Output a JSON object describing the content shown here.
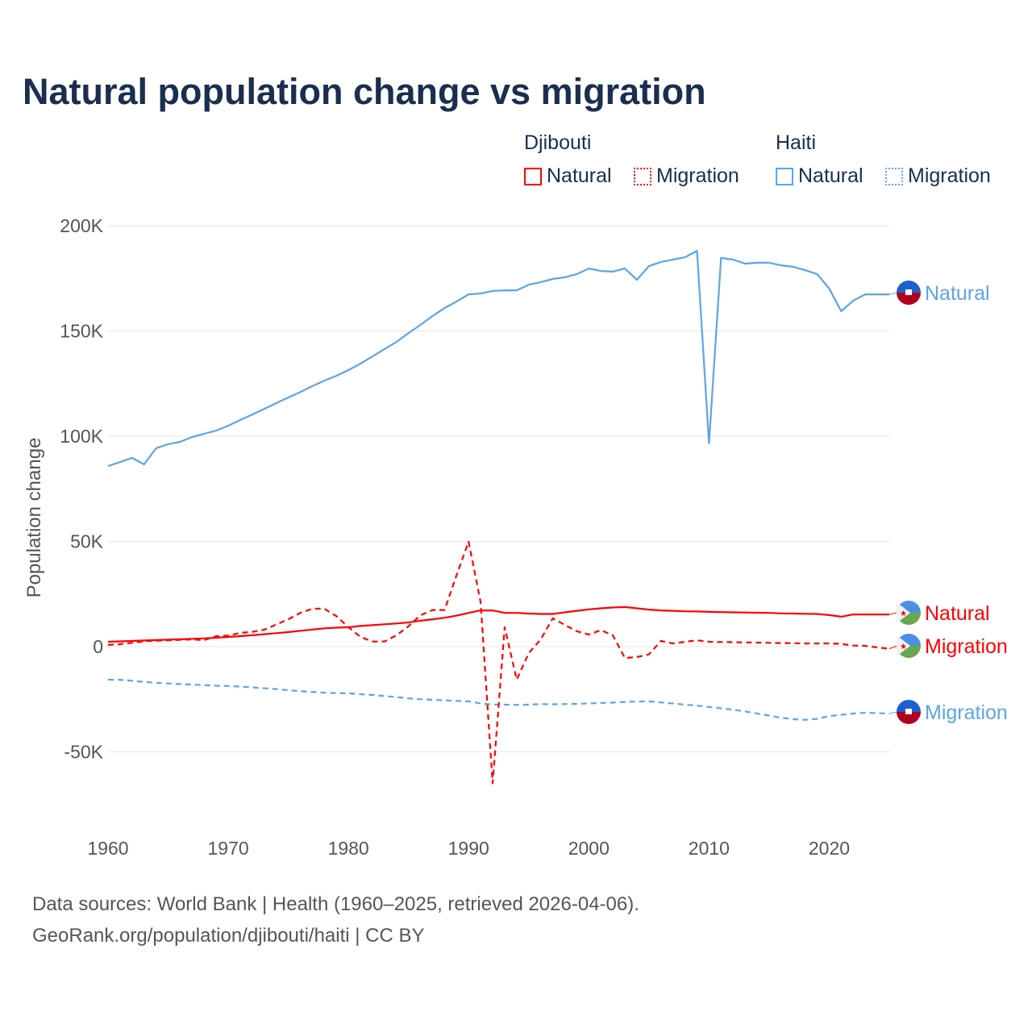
{
  "chart_data": {
    "type": "line",
    "title": "Natural population change vs migration",
    "ylabel": "Population change",
    "xlabel": "",
    "xlim": [
      1960,
      2025
    ],
    "ylim": [
      -65000,
      200000
    ],
    "x_ticks": [
      1960,
      1970,
      1980,
      1990,
      2000,
      2010,
      2020
    ],
    "y_ticks": [
      -50000,
      0,
      50000,
      100000,
      150000,
      200000
    ],
    "y_tick_labels": [
      "-50K",
      "0",
      "50K",
      "100K",
      "150K",
      "200K"
    ],
    "grid": true,
    "legend": {
      "placement": "top-right",
      "groups": [
        {
          "name": "Djibouti",
          "items": [
            "Natural",
            "Migration"
          ]
        },
        {
          "name": "Haiti",
          "items": [
            "Natural",
            "Migration"
          ]
        }
      ]
    },
    "x": [
      1960,
      1961,
      1962,
      1963,
      1964,
      1965,
      1966,
      1967,
      1968,
      1969,
      1970,
      1971,
      1972,
      1973,
      1974,
      1975,
      1976,
      1977,
      1978,
      1979,
      1980,
      1981,
      1982,
      1983,
      1984,
      1985,
      1986,
      1987,
      1988,
      1989,
      1990,
      1991,
      1992,
      1993,
      1994,
      1995,
      1996,
      1997,
      1998,
      1999,
      2000,
      2001,
      2002,
      2003,
      2004,
      2005,
      2006,
      2007,
      2008,
      2009,
      2010,
      2011,
      2012,
      2013,
      2014,
      2015,
      2016,
      2017,
      2018,
      2019,
      2020,
      2021,
      2022,
      2023,
      2024,
      2025
    ],
    "series": [
      {
        "country": "Haiti",
        "name": "Natural",
        "color": "#5da4e8",
        "dash": false,
        "end_label": "Natural",
        "values": [
          85800,
          87700,
          89700,
          86600,
          94300,
          96200,
          97300,
          99600,
          101100,
          102700,
          105000,
          107700,
          110300,
          113000,
          115700,
          118400,
          121000,
          123800,
          126400,
          128700,
          131400,
          134500,
          137900,
          141400,
          144800,
          149000,
          152900,
          157100,
          160900,
          164000,
          167400,
          167800,
          169000,
          169300,
          169300,
          172000,
          173200,
          174700,
          175500,
          177000,
          179700,
          178500,
          178200,
          179700,
          174300,
          180800,
          182800,
          183900,
          185000,
          188100,
          96600,
          184700,
          183900,
          182000,
          182400,
          182400,
          181200,
          180500,
          178900,
          177000,
          170100,
          159400,
          164400,
          167400,
          167400,
          167400
        ]
      },
      {
        "country": "Haiti",
        "name": "Migration",
        "color": "#5da4e8",
        "dash": true,
        "end_label": "Migration",
        "values": [
          -15700,
          -15800,
          -16200,
          -16800,
          -17200,
          -17500,
          -17800,
          -18000,
          -18300,
          -18600,
          -18700,
          -19000,
          -19400,
          -19800,
          -20200,
          -20700,
          -21200,
          -21500,
          -21900,
          -22100,
          -22200,
          -22600,
          -23000,
          -23500,
          -24000,
          -24600,
          -25000,
          -25300,
          -25500,
          -25800,
          -26000,
          -27000,
          -27500,
          -27600,
          -27700,
          -27600,
          -27300,
          -27400,
          -27300,
          -27200,
          -27000,
          -26800,
          -26600,
          -26300,
          -26100,
          -26000,
          -26500,
          -27000,
          -27600,
          -28000,
          -28700,
          -29300,
          -30000,
          -30800,
          -31800,
          -32800,
          -33800,
          -34500,
          -34800,
          -34300,
          -33000,
          -32400,
          -31800,
          -31400,
          -31600,
          -31800
        ]
      },
      {
        "country": "Djibouti",
        "name": "Natural",
        "color": "#ff0000",
        "dash": false,
        "end_label": "Natural",
        "values": [
          2300,
          2500,
          2700,
          2900,
          3100,
          3300,
          3500,
          3700,
          3900,
          4200,
          4600,
          5000,
          5400,
          5900,
          6400,
          6900,
          7500,
          8100,
          8700,
          9000,
          9200,
          9800,
          10200,
          10600,
          11000,
          11500,
          12300,
          13000,
          13700,
          14700,
          16000,
          17200,
          17200,
          16000,
          16000,
          15700,
          15500,
          15500,
          16300,
          17000,
          17700,
          18200,
          18600,
          18800,
          18200,
          17600,
          17200,
          17000,
          16800,
          16700,
          16500,
          16400,
          16300,
          16200,
          16100,
          16000,
          15800,
          15700,
          15600,
          15500,
          15000,
          14200,
          15300,
          15300,
          15300,
          15300
        ]
      },
      {
        "country": "Djibouti",
        "name": "Migration",
        "color": "#ff0000",
        "dash": true,
        "end_label": "Migration",
        "values": [
          800,
          1200,
          1800,
          2500,
          2800,
          3000,
          3200,
          3400,
          3100,
          5000,
          5200,
          6500,
          7000,
          8000,
          10500,
          13000,
          16000,
          18000,
          18000,
          14500,
          9200,
          4600,
          2400,
          2400,
          5400,
          9700,
          14900,
          17400,
          17400,
          34000,
          49900,
          21200,
          -65000,
          9200,
          -15700,
          -3100,
          3400,
          13500,
          10300,
          7300,
          5700,
          7800,
          5400,
          -5400,
          -5000,
          -3700,
          2700,
          1500,
          2300,
          3000,
          2300,
          2200,
          2100,
          2000,
          1900,
          1800,
          1700,
          1600,
          1500,
          1500,
          1500,
          1300,
          500,
          400,
          -400,
          -1000
        ]
      }
    ]
  },
  "footer": {
    "line1": "Data sources: World Bank | Health (1960–2025, retrieved 2026-04-06).",
    "line2": "GeoRank.org/population/djibouti/haiti | CC BY"
  }
}
